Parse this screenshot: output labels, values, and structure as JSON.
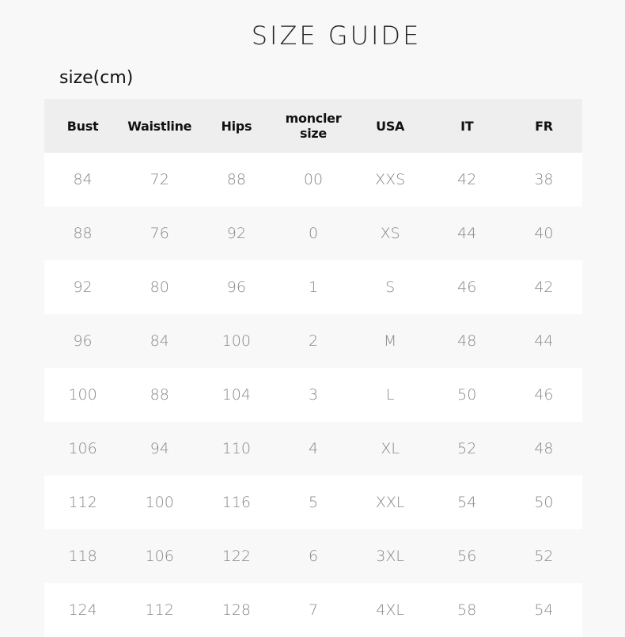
{
  "title": "SIZE GUIDE",
  "unit_label": "size(cm)",
  "table": {
    "headers": [
      "Bust",
      "Waistline",
      "Hips",
      "moncler size",
      "USA",
      "IT",
      "FR"
    ],
    "rows": [
      [
        "84",
        "72",
        "88",
        "00",
        "XXS",
        "42",
        "38"
      ],
      [
        "88",
        "76",
        "92",
        "0",
        "XS",
        "44",
        "40"
      ],
      [
        "92",
        "80",
        "96",
        "1",
        "S",
        "46",
        "42"
      ],
      [
        "96",
        "84",
        "100",
        "2",
        "M",
        "48",
        "44"
      ],
      [
        "100",
        "88",
        "104",
        "3",
        "L",
        "50",
        "46"
      ],
      [
        "106",
        "94",
        "110",
        "4",
        "XL",
        "52",
        "48"
      ],
      [
        "112",
        "100",
        "116",
        "5",
        "XXL",
        "54",
        "50"
      ],
      [
        "118",
        "106",
        "122",
        "6",
        "3XL",
        "56",
        "52"
      ],
      [
        "124",
        "112",
        "128",
        "7",
        "4XL",
        "58",
        "54"
      ]
    ]
  }
}
